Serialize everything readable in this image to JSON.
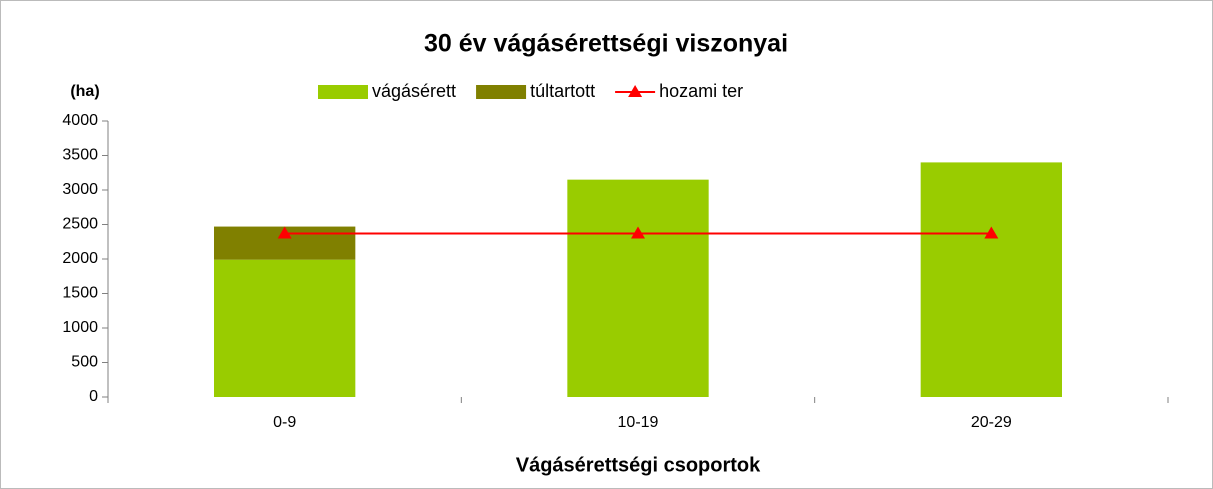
{
  "chart_data": {
    "type": "bar",
    "stacked": true,
    "title": "30 év vágásérettségi viszonyai",
    "y_label": "(ha)",
    "x_label": "Vágásérettségi csoportok",
    "categories": [
      "0-9",
      "10-19",
      "20-29"
    ],
    "series": [
      {
        "name": "vágásérett",
        "color": "#99cc00",
        "type": "bar",
        "values": [
          1990,
          3150,
          3400
        ]
      },
      {
        "name": "túltartott",
        "color": "#808000",
        "type": "bar",
        "values": [
          480,
          0,
          0
        ]
      },
      {
        "name": "hozami ter",
        "color": "#ff0000",
        "type": "line",
        "values": [
          2370,
          2370,
          2370
        ]
      }
    ],
    "ylim": [
      0,
      4000
    ],
    "yticks": [
      0,
      500,
      1000,
      1500,
      2000,
      2500,
      3000,
      3500,
      4000
    ],
    "grid": false,
    "legend": "top"
  }
}
